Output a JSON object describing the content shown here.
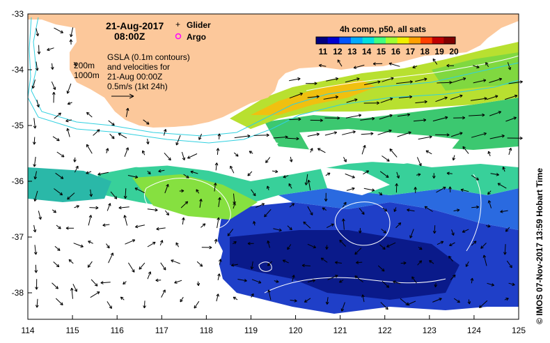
{
  "map": {
    "date": "21-Aug-2017",
    "time": "08:00Z",
    "legend_markers": [
      {
        "label": "Glider",
        "symbol": "+",
        "color": "#ff00ff"
      },
      {
        "label": "Argo",
        "symbol": "o",
        "color": "#ff00ff"
      }
    ],
    "gsla_note": [
      "GSLA (0.1m contours)",
      "and velocities for",
      "21-Aug 00:00Z",
      "0.5m/s (1kt 24h)"
    ],
    "isobath_labels": [
      "200m",
      "1000m"
    ],
    "colorbar": {
      "title": "4h comp, p50, all sats",
      "ticks": [
        "11",
        "12",
        "13",
        "14",
        "15",
        "16",
        "17",
        "18",
        "19",
        "20"
      ],
      "colors": [
        "#00007f",
        "#0000d0",
        "#0055ff",
        "#00aaff",
        "#00e0e0",
        "#40ff80",
        "#a0ff30",
        "#f0f000",
        "#ffa000",
        "#ff4000",
        "#c00000",
        "#800000"
      ]
    },
    "credit": "© IMOS 07-Nov-2017 13:59 Hobart Time",
    "lon_ticks": [
      "114",
      "115",
      "116",
      "117",
      "118",
      "119",
      "120",
      "121",
      "122",
      "123",
      "124",
      "125"
    ],
    "lat_ticks": [
      "-33",
      "-34",
      "-35",
      "-36",
      "-37",
      "-38"
    ],
    "colors": {
      "land": "#fcc89b",
      "isobath": "#30d0e0",
      "contour": "#ffffff",
      "cloud": "#ffffff",
      "frame": "#000000"
    }
  }
}
